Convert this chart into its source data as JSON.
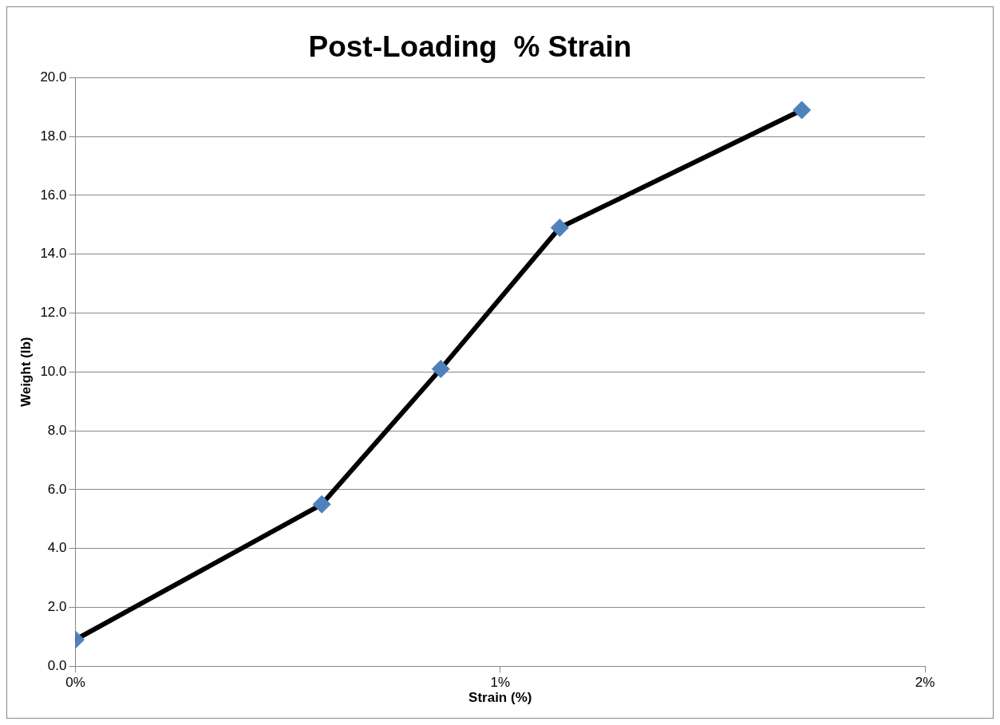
{
  "chart_data": {
    "type": "line",
    "title": "Post-Loading  % Strain",
    "xlabel": "Strain (%)",
    "ylabel": "Weight (lb)",
    "x": [
      0,
      0.58,
      0.86,
      1.14,
      1.71
    ],
    "series": [
      {
        "color": "#000000",
        "colors": [
          "#4f81bd",
          "#4f81bd",
          "#4f81bd",
          "#4f81bd",
          "#4f81bd"
        ],
        "values": [
          0.9,
          5.5,
          10.1,
          14.9,
          18.9
        ]
      }
    ],
    "xlim": [
      0,
      2
    ],
    "xticks": [
      {
        "value": 0,
        "label": "0%"
      },
      {
        "value": 1,
        "label": "1%"
      },
      {
        "value": 2,
        "label": "2%"
      }
    ],
    "ylim": [
      0,
      20
    ],
    "yticks": [
      {
        "value": 0,
        "label": "0.0"
      },
      {
        "value": 2,
        "label": "2.0"
      },
      {
        "value": 4,
        "label": "4.0"
      },
      {
        "value": 6,
        "label": "6.0"
      },
      {
        "value": 8,
        "label": "8.0"
      },
      {
        "value": 10,
        "label": "10.0"
      },
      {
        "value": 12,
        "label": "12.0"
      },
      {
        "value": 14,
        "label": "14.0"
      },
      {
        "value": 16,
        "label": "16.0"
      },
      {
        "value": 18,
        "label": "18.0"
      },
      {
        "value": 20,
        "label": "20.0"
      }
    ],
    "grid": "y",
    "legend": false,
    "marker": "diamond",
    "line_style": "solid"
  }
}
